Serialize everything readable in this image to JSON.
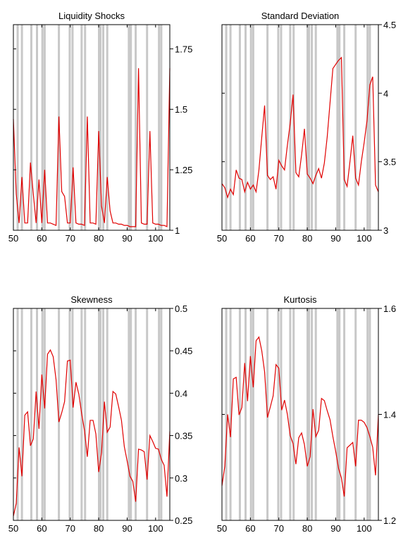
{
  "recession_color": "#c8c8c8",
  "series_color": "#e00000",
  "recession_x": [
    51.5,
    53,
    56.3,
    58.3,
    60.2,
    61,
    66,
    69.8,
    70.8,
    74,
    75.2,
    80.1,
    80.6,
    81.6,
    83,
    90.6,
    91.3,
    93,
    97,
    101.2,
    102
  ],
  "chart_data": [
    {
      "type": "line",
      "title": "Liquidity Shocks",
      "xlim": [
        50,
        105
      ],
      "ylim": [
        1,
        1.85
      ],
      "x_ticks": [
        50,
        60,
        70,
        80,
        90,
        100
      ],
      "y_ticks": [
        "1",
        "1.25",
        "1.5",
        "1.75"
      ],
      "y_tick_values": [
        1,
        1.25,
        1.5,
        1.75
      ],
      "x": [
        50,
        51,
        52,
        53,
        54,
        55,
        56,
        57,
        58,
        59,
        60,
        61,
        62,
        63,
        64,
        65,
        66,
        67,
        68,
        69,
        70,
        71,
        72,
        73,
        74,
        75,
        76,
        77,
        78,
        79,
        80,
        81,
        82,
        83,
        84,
        85,
        86,
        87,
        88,
        89,
        90,
        91,
        92,
        93,
        94,
        95,
        96,
        97,
        98,
        99,
        100,
        101,
        102,
        103,
        104,
        105
      ],
      "values": [
        1.46,
        1.15,
        1.03,
        1.22,
        1.03,
        1.03,
        1.28,
        1.15,
        1.03,
        1.21,
        1.03,
        1.25,
        1.03,
        1.03,
        1.025,
        1.02,
        1.47,
        1.16,
        1.14,
        1.03,
        1.03,
        1.26,
        1.03,
        1.025,
        1.025,
        1.02,
        1.47,
        1.03,
        1.03,
        1.025,
        1.41,
        1.1,
        1.03,
        1.22,
        1.08,
        1.03,
        1.03,
        1.025,
        1.025,
        1.02,
        1.02,
        1.015,
        1.015,
        1.015,
        1.67,
        1.03,
        1.025,
        1.025,
        1.41,
        1.03,
        1.025,
        1.025,
        1.02,
        1.02,
        1.015,
        1.67
      ]
    },
    {
      "type": "line",
      "title": "Standard Deviation",
      "xlim": [
        50,
        105
      ],
      "ylim": [
        3,
        4.5
      ],
      "x_ticks": [
        50,
        60,
        70,
        80,
        90,
        100
      ],
      "y_ticks": [
        "3",
        "3.5",
        "4",
        "4.5"
      ],
      "y_tick_values": [
        3,
        3.5,
        4,
        4.5
      ],
      "x": [
        50,
        51,
        52,
        53,
        54,
        55,
        56,
        57,
        58,
        59,
        60,
        61,
        62,
        63,
        64,
        65,
        66,
        67,
        68,
        69,
        70,
        71,
        72,
        73,
        74,
        75,
        76,
        77,
        78,
        79,
        80,
        81,
        82,
        83,
        84,
        85,
        86,
        87,
        88,
        89,
        90,
        91,
        92,
        93,
        94,
        95,
        96,
        97,
        98,
        99,
        100,
        101,
        102,
        103,
        104,
        105
      ],
      "values": [
        3.34,
        3.31,
        3.24,
        3.3,
        3.26,
        3.44,
        3.38,
        3.37,
        3.28,
        3.35,
        3.3,
        3.33,
        3.28,
        3.44,
        3.68,
        3.91,
        3.4,
        3.37,
        3.39,
        3.3,
        3.51,
        3.47,
        3.44,
        3.62,
        3.78,
        3.99,
        3.42,
        3.39,
        3.55,
        3.74,
        3.41,
        3.38,
        3.34,
        3.4,
        3.45,
        3.38,
        3.49,
        3.68,
        3.93,
        4.18,
        4.21,
        4.24,
        4.26,
        3.37,
        3.32,
        3.5,
        3.69,
        3.38,
        3.33,
        3.5,
        3.64,
        3.8,
        4.06,
        4.12,
        3.33,
        3.28
      ]
    },
    {
      "type": "line",
      "title": "Skewness",
      "xlim": [
        50,
        105
      ],
      "ylim": [
        0.25,
        0.5
      ],
      "x_ticks": [
        50,
        60,
        70,
        80,
        90,
        100
      ],
      "y_ticks": [
        "0.25",
        "0.3",
        "0.35",
        "0.4",
        "0.45",
        "0.5"
      ],
      "y_tick_values": [
        0.25,
        0.3,
        0.35,
        0.4,
        0.45,
        0.5
      ],
      "x": [
        50,
        51,
        52,
        53,
        54,
        55,
        56,
        57,
        58,
        59,
        60,
        61,
        62,
        63,
        64,
        65,
        66,
        67,
        68,
        69,
        70,
        71,
        72,
        73,
        74,
        75,
        76,
        77,
        78,
        79,
        80,
        81,
        82,
        83,
        84,
        85,
        86,
        87,
        88,
        89,
        90,
        91,
        92,
        93,
        94,
        95,
        96,
        97,
        98,
        99,
        100,
        101,
        102,
        103,
        104,
        105
      ],
      "values": [
        0.255,
        0.27,
        0.336,
        0.302,
        0.374,
        0.378,
        0.338,
        0.346,
        0.402,
        0.358,
        0.422,
        0.382,
        0.446,
        0.451,
        0.443,
        0.416,
        0.366,
        0.377,
        0.39,
        0.438,
        0.439,
        0.383,
        0.413,
        0.399,
        0.376,
        0.356,
        0.325,
        0.368,
        0.368,
        0.352,
        0.307,
        0.33,
        0.39,
        0.354,
        0.36,
        0.402,
        0.399,
        0.384,
        0.368,
        0.337,
        0.32,
        0.302,
        0.296,
        0.272,
        0.334,
        0.333,
        0.331,
        0.298,
        0.35,
        0.343,
        0.335,
        0.334,
        0.322,
        0.315,
        0.278,
        0.355
      ]
    },
    {
      "type": "line",
      "title": "Kurtosis",
      "xlim": [
        50,
        105
      ],
      "ylim": [
        1.2,
        1.6
      ],
      "x_ticks": [
        50,
        60,
        70,
        80,
        90,
        100
      ],
      "y_ticks": [
        "1.2",
        "1.4",
        "1.6"
      ],
      "y_tick_values": [
        1.2,
        1.4,
        1.6
      ],
      "x": [
        50,
        51,
        52,
        53,
        54,
        55,
        56,
        57,
        58,
        59,
        60,
        61,
        62,
        63,
        64,
        65,
        66,
        67,
        68,
        69,
        70,
        71,
        72,
        73,
        74,
        75,
        76,
        77,
        78,
        79,
        80,
        81,
        82,
        83,
        84,
        85,
        86,
        87,
        88,
        89,
        90,
        91,
        92,
        93,
        94,
        95,
        96,
        97,
        98,
        99,
        100,
        101,
        102,
        103,
        104,
        105
      ],
      "values": [
        1.265,
        1.302,
        1.4,
        1.357,
        1.467,
        1.47,
        1.399,
        1.413,
        1.497,
        1.425,
        1.51,
        1.451,
        1.539,
        1.546,
        1.52,
        1.48,
        1.394,
        1.414,
        1.435,
        1.494,
        1.487,
        1.408,
        1.427,
        1.4,
        1.36,
        1.345,
        1.306,
        1.356,
        1.365,
        1.343,
        1.302,
        1.32,
        1.41,
        1.358,
        1.37,
        1.43,
        1.426,
        1.407,
        1.39,
        1.358,
        1.33,
        1.298,
        1.28,
        1.245,
        1.337,
        1.342,
        1.347,
        1.302,
        1.389,
        1.389,
        1.385,
        1.375,
        1.358,
        1.338,
        1.285,
        1.4
      ]
    }
  ]
}
